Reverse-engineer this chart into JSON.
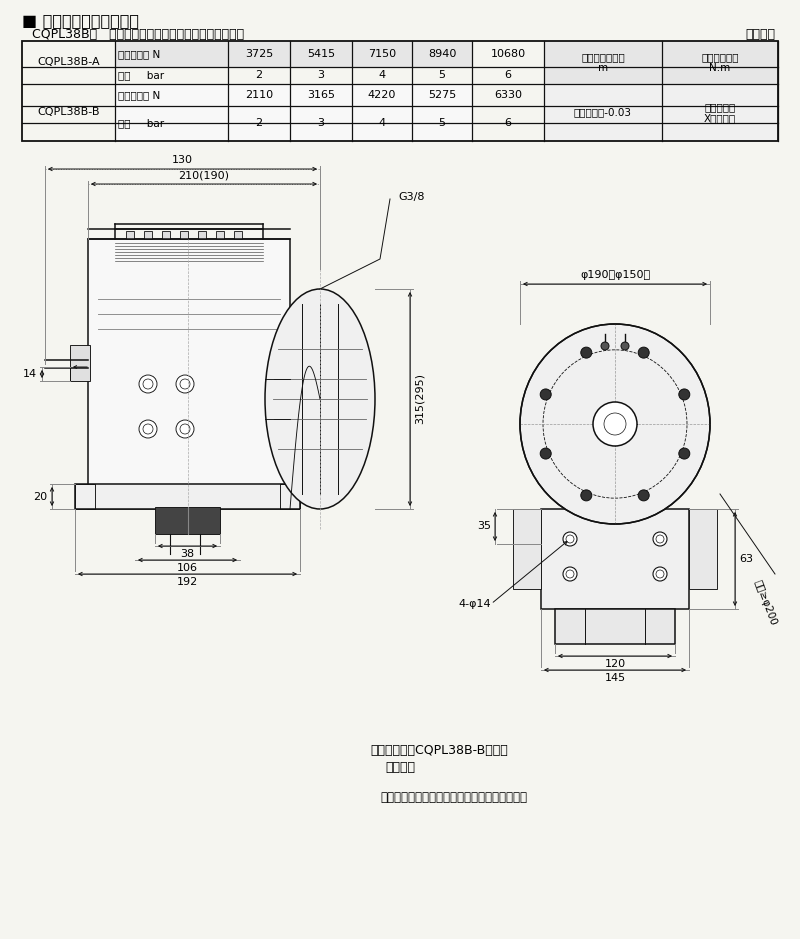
{
  "title": "■ 技术参数及外形尺寸表",
  "subtitle": "CQPL38B型   技术参数见表七，结构及外形尺寸见图二",
  "table_label": "（表七）",
  "row_A_label": "CQPL38B-A",
  "row_B_label": "CQPL38B-B",
  "col1_r1": "额定制动力 N",
  "col1_r2": "气压     bar",
  "vals_A1": [
    "3725",
    "5415",
    "7150",
    "8940",
    "10680"
  ],
  "vals_A2": [
    "2",
    "3",
    "4",
    "5",
    "6"
  ],
  "vals_B1": [
    "2110",
    "3165",
    "4220",
    "5275",
    "6330"
  ],
  "vals_B2": [
    "2",
    "3",
    "4",
    "5",
    "6"
  ],
  "col7_A": "制动盘有效半径\nm",
  "col8_A": "额定制动力矩\nN.m",
  "col7_B": "制动盘半径-0.03",
  "col8_B": "额定制动力\nX有效半径",
  "note1": "注：括号内为CQPL38B-B的尺寸",
  "note2": "（图二）",
  "note3": "注：具体型号，结构外形尺寸保留更改的权利。",
  "dim_130": "130",
  "dim_210": "210(190)",
  "dim_315": "315(295)",
  "dim_14": "14",
  "dim_20": "20",
  "dim_38": "38",
  "dim_106": "106",
  "dim_192": "192",
  "dim_phi190": "φ190（φ150）",
  "dim_35": "35",
  "dim_63": "63",
  "dim_4phi14": "4-φ14",
  "dim_120": "120",
  "dim_145": "145",
  "label_G38": "G3/8",
  "label_radius": "半径≥φ200",
  "bg_color": "#f5f5f0"
}
